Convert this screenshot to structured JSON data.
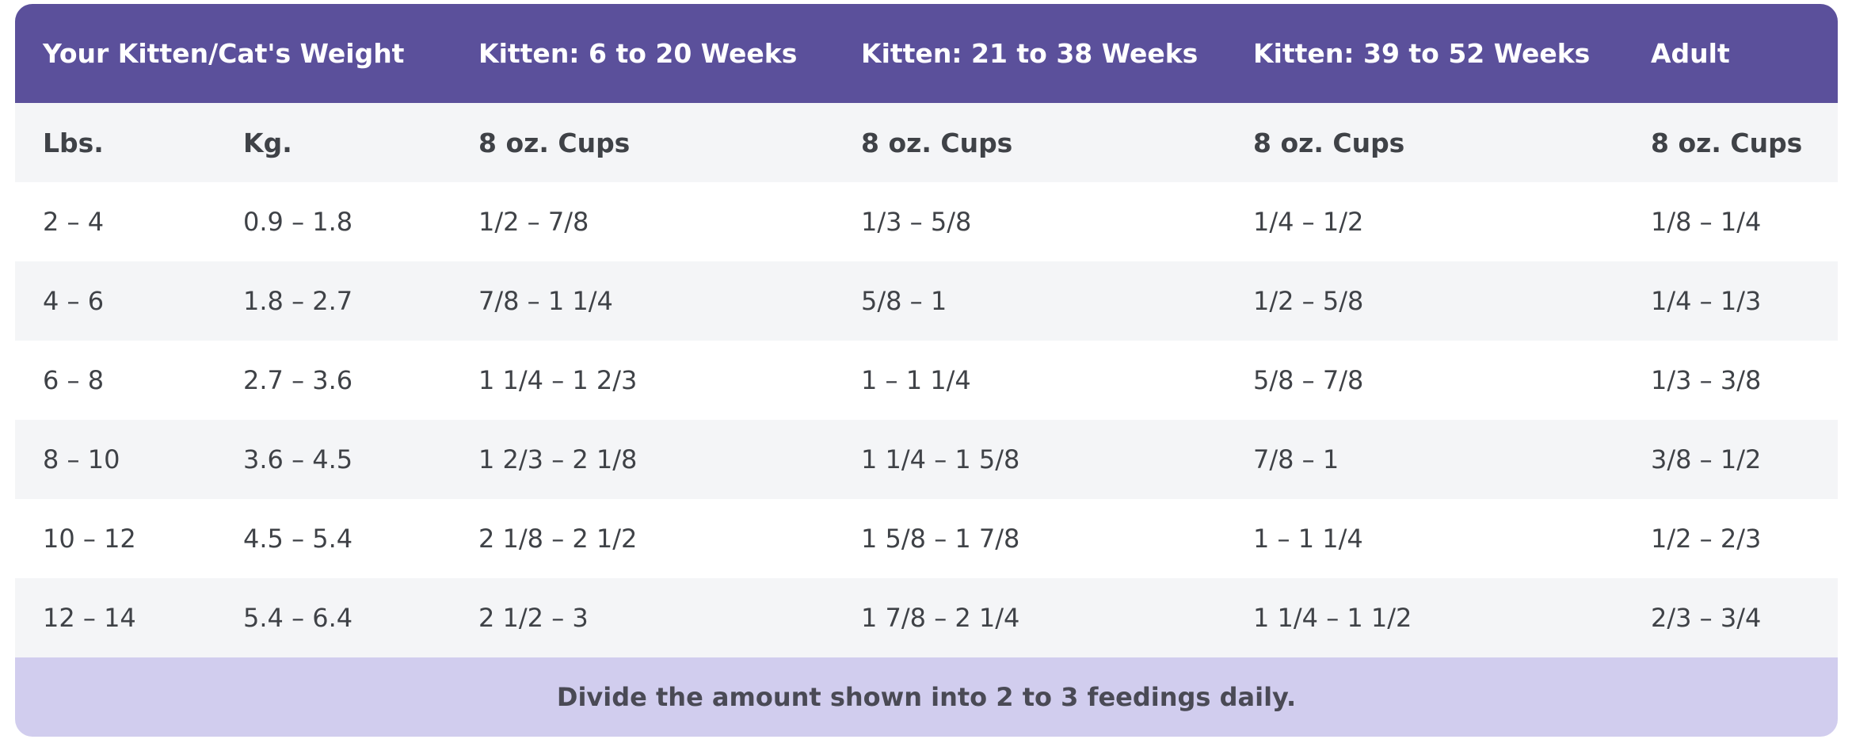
{
  "table": {
    "header": [
      "Your Kitten/Cat's Weight",
      "Kitten: 6 to 20 Weeks",
      "Kitten: 21 to 38 Weeks",
      "Kitten: 39 to 52 Weeks",
      "Adult"
    ],
    "subheader": [
      "Lbs.",
      "Kg.",
      "8 oz. Cups",
      "8 oz. Cups",
      "8 oz. Cups",
      "8 oz. Cups"
    ],
    "rows": [
      [
        "2 – 4",
        "0.9 – 1.8",
        "1/2 – 7/8",
        "1/3 – 5/8",
        "1/4 – 1/2",
        "1/8 – 1/4"
      ],
      [
        "4 – 6",
        "1.8 – 2.7",
        "7/8 – 1 1/4",
        "5/8 – 1",
        "1/2 – 5/8",
        "1/4 – 1/3"
      ],
      [
        "6 – 8",
        "2.7 – 3.6",
        "1 1/4 – 1 2/3",
        "1 – 1 1/4",
        "5/8 – 7/8",
        "1/3 – 3/8"
      ],
      [
        "8 – 10",
        "3.6 – 4.5",
        "1 2/3 – 2 1/8",
        "1 1/4 – 1 5/8",
        "7/8 – 1",
        "3/8 – 1/2"
      ],
      [
        "10 – 12",
        "4.5 – 5.4",
        "2 1/8 – 2 1/2",
        "1 5/8 – 1 7/8",
        "1 – 1 1/4",
        "1/2 – 2/3"
      ],
      [
        "12 – 14",
        "5.4 – 6.4",
        "2 1/2 – 3",
        "1 7/8 – 2 1/4",
        "1 1/4 – 1 1/2",
        "2/3 – 3/4"
      ]
    ],
    "footer": "Divide the amount shown into 2 to 3 feedings daily."
  }
}
